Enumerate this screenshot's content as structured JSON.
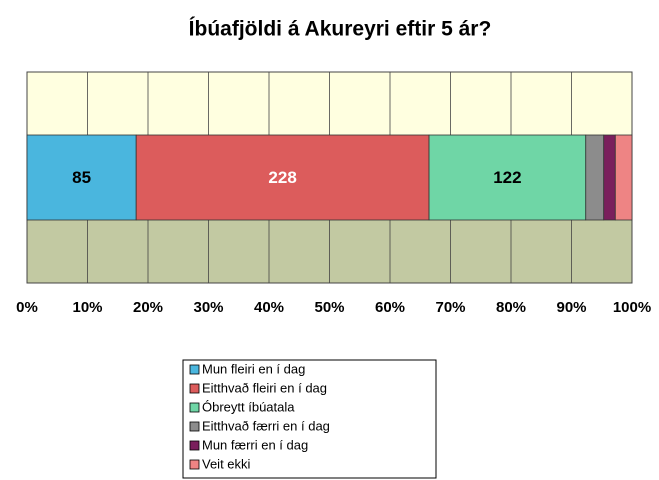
{
  "chart_data": {
    "type": "stacked_bar_100_horizontal",
    "title": "Íbúafjöldi á Akureyri eftir 5 ár?",
    "series": [
      {
        "name": "Mun fleiri en í dag",
        "color": "#4ab6de",
        "values": [
          85
        ]
      },
      {
        "name": "Eitthvað fleiri en í dag",
        "color": "#dc5c5c",
        "values": [
          228
        ]
      },
      {
        "name": "Óbreytt íbúatala",
        "color": "#6fd6a6",
        "values": [
          122
        ]
      },
      {
        "name": "Eitthvað færri en í dag",
        "color": "#8c8c8c",
        "values": [
          14
        ]
      },
      {
        "name": "Mun færri en í dag",
        "color": "#7a1f5c",
        "values": [
          9
        ]
      },
      {
        "name": "Veit ekki",
        "color": "#ee8484",
        "values": [
          13
        ]
      }
    ],
    "xlim": [
      0,
      100
    ],
    "xticks": [
      {
        "value": 0,
        "label": "0%"
      },
      {
        "value": 10,
        "label": "10%"
      },
      {
        "value": 20,
        "label": "20%"
      },
      {
        "value": 30,
        "label": "30%"
      },
      {
        "value": 40,
        "label": "40%"
      },
      {
        "value": 50,
        "label": "50%"
      },
      {
        "value": 60,
        "label": "60%"
      },
      {
        "value": 70,
        "label": "70%"
      },
      {
        "value": 80,
        "label": "80%"
      },
      {
        "value": 90,
        "label": "90%"
      },
      {
        "value": 100,
        "label": "100%"
      }
    ],
    "grid": true
  }
}
